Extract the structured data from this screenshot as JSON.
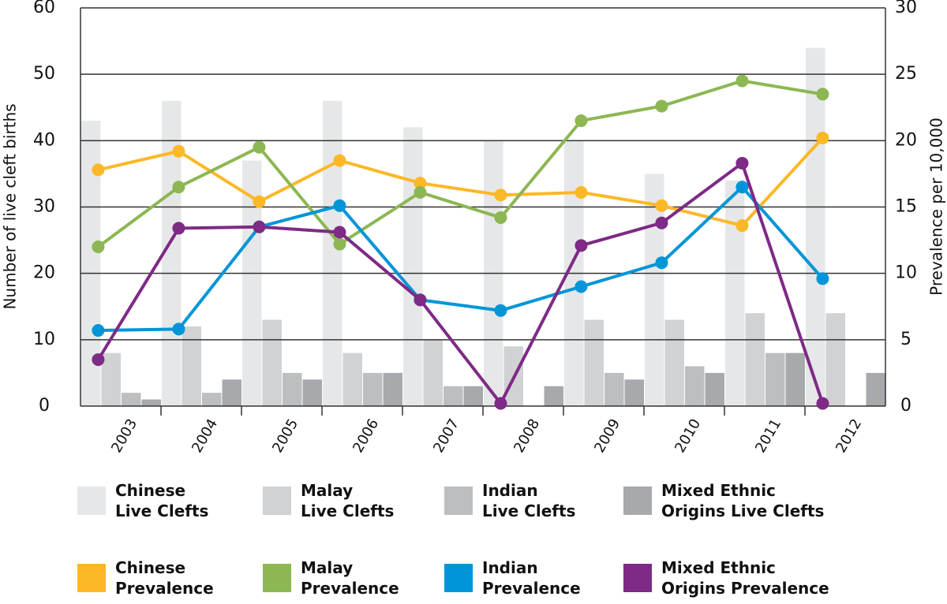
{
  "chart_data": {
    "type": "bar",
    "categories": [
      "2003",
      "2004",
      "2005",
      "2006",
      "2007",
      "2008",
      "2009",
      "2010",
      "2011",
      "2012"
    ],
    "y_label": "Number of live cleft births",
    "y2_label": "Prevalence per 10,000",
    "ylim": [
      0,
      60
    ],
    "yticks": [
      0,
      10,
      20,
      30,
      40,
      50,
      60
    ],
    "y2lim": [
      0,
      30
    ],
    "y2ticks": [
      0,
      5,
      10,
      15,
      20,
      25,
      30
    ],
    "grid": true,
    "series": [
      {
        "name": "Chinese\nLive Clefts",
        "type": "bar",
        "color": "#e6e7e8",
        "values": [
          43,
          46,
          37,
          46,
          42,
          40,
          40,
          35,
          34,
          54
        ]
      },
      {
        "name": "Malay\nLive Clefts",
        "type": "bar",
        "color": "#d1d2d4",
        "values": [
          8,
          12,
          13,
          8,
          10,
          9,
          13,
          13,
          14,
          14
        ]
      },
      {
        "name": "Indian\nLive Clefts",
        "type": "bar",
        "color": "#bcbec0",
        "values": [
          2,
          2,
          5,
          5,
          3,
          0,
          5,
          6,
          8,
          0
        ]
      },
      {
        "name": "Mixed Ethnic\nOrigins Live Clefts",
        "type": "bar",
        "color": "#a7a9ac",
        "values": [
          1,
          4,
          4,
          5,
          3,
          3,
          4,
          5,
          8,
          5
        ]
      },
      {
        "name": "Chinese\nPrevalence",
        "type": "line",
        "axis": "y2",
        "color": "#fdb827",
        "values": [
          17.8,
          19.2,
          15.4,
          18.5,
          16.8,
          15.9,
          16.1,
          15.1,
          13.6,
          20.2
        ]
      },
      {
        "name": "Malay\nPrevalence",
        "type": "line",
        "axis": "y2",
        "color": "#8cb752",
        "values": [
          12.0,
          16.5,
          19.5,
          12.2,
          16.1,
          14.2,
          21.5,
          22.6,
          24.5,
          23.5
        ]
      },
      {
        "name": "Indian\nPrevalence",
        "type": "line",
        "axis": "y2",
        "color": "#0095d8",
        "values": [
          5.7,
          5.8,
          13.5,
          15.1,
          8.0,
          7.2,
          9.0,
          10.8,
          16.5,
          9.6
        ]
      },
      {
        "name": "Mixed Ethnic\nOrigins Prevalence",
        "type": "line",
        "axis": "y2",
        "color": "#7e2a86",
        "values": [
          3.5,
          13.4,
          13.5,
          13.1,
          8.0,
          0.2,
          12.1,
          13.8,
          18.3,
          0.2
        ]
      }
    ]
  }
}
